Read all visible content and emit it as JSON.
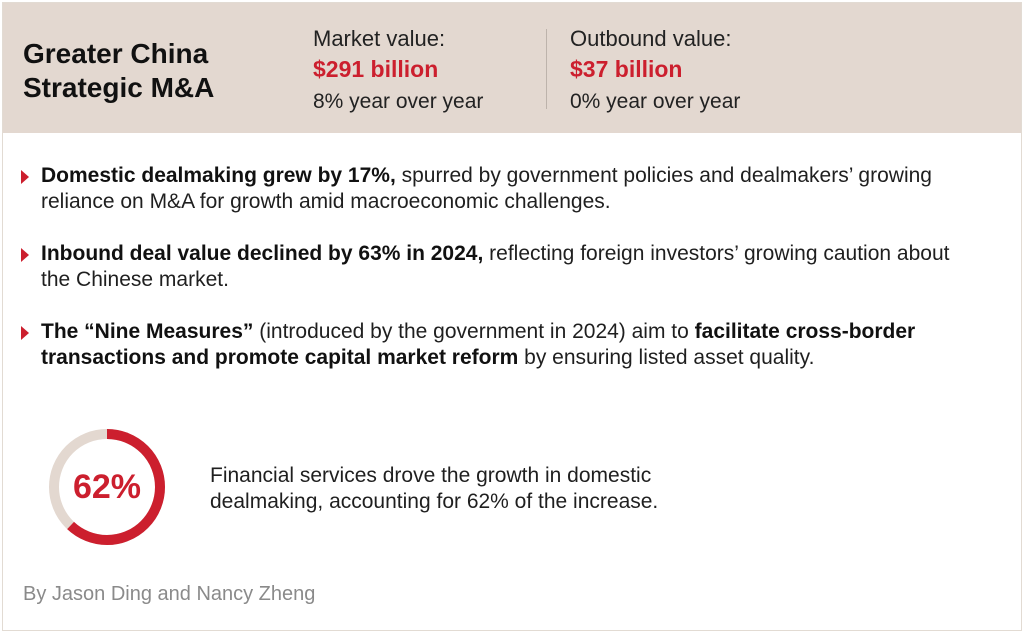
{
  "colors": {
    "accent": "#cc1f2e",
    "header_bg": "#e3d8d0",
    "ring_track": "#e3d8d0"
  },
  "header": {
    "title_line1": "Greater China",
    "title_line2": "Strategic M&A",
    "market": {
      "label": "Market value:",
      "value": "$291 billion",
      "change": "8% year over year"
    },
    "outbound": {
      "label": "Outbound value:",
      "value": "$37 billion",
      "change": "0% year over year"
    }
  },
  "bullets": [
    {
      "parts": [
        {
          "text": "Domestic dealmaking grew by 17%,",
          "bold": true
        },
        {
          "text": " spurred by government policies and dealmakers’ growing reliance on M&A for growth amid macroeconomic challenges.",
          "bold": false
        }
      ]
    },
    {
      "parts": [
        {
          "text": "Inbound deal value declined by 63% in 2024,",
          "bold": true
        },
        {
          "text": " reflecting foreign investors’ growing caution about the Chinese market.",
          "bold": false
        }
      ]
    },
    {
      "parts": [
        {
          "text": "The “Nine Measures”",
          "bold": true
        },
        {
          "text": " (introduced by the government in 2024) aim to ",
          "bold": false
        },
        {
          "text": "facilitate cross-border transactions and promote capital market reform",
          "bold": true
        },
        {
          "text": " by ensuring listed asset quality.",
          "bold": false
        }
      ]
    }
  ],
  "highlight": {
    "percent_label": "62%",
    "fraction": 0.62,
    "text_line1": "Financial services drove the growth in domestic",
    "text_line2": "dealmaking, accounting for 62% of the increase."
  },
  "byline": "By Jason Ding and Nancy Zheng"
}
